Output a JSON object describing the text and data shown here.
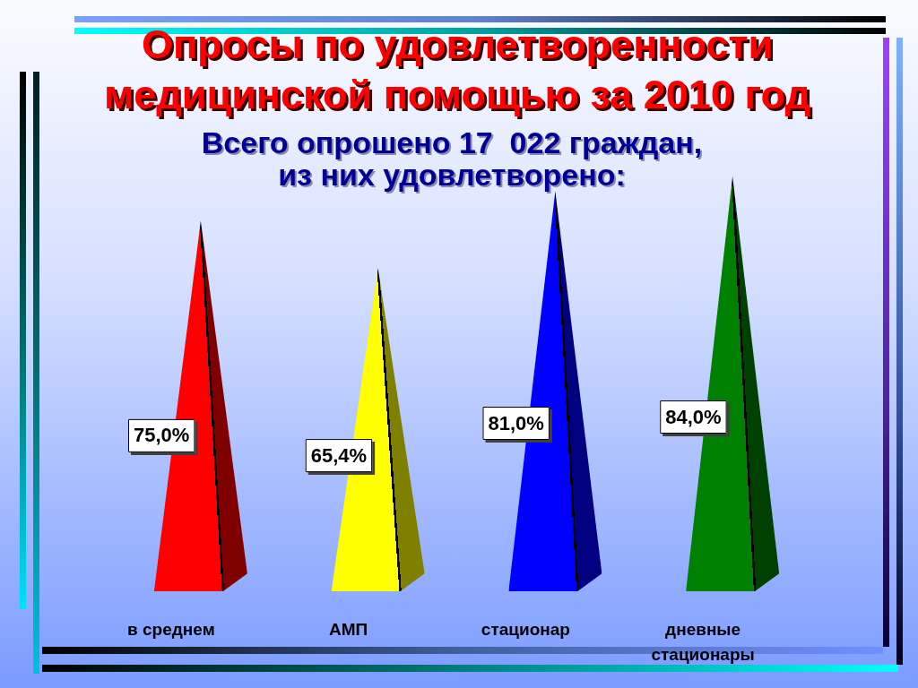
{
  "chart_data": {
    "type": "bar",
    "title": "Опросы по удовлетворенности медицинской помощью за 2010 год",
    "subtitle": "Всего опрошено 17  022 граждан, из них удовлетворено:",
    "categories": [
      "в среднем",
      "АМП",
      "стационар",
      "дневные стационары"
    ],
    "values": [
      75.0,
      65.4,
      81.0,
      84.0
    ],
    "colors": [
      "#ff0000",
      "#ffff00",
      "#0000ff",
      "#008000"
    ],
    "value_labels": [
      "75,0%",
      "65,4%",
      "81,0%",
      "84,0%"
    ],
    "tick_labels": "x",
    "grid": false,
    "legend": false
  }
}
